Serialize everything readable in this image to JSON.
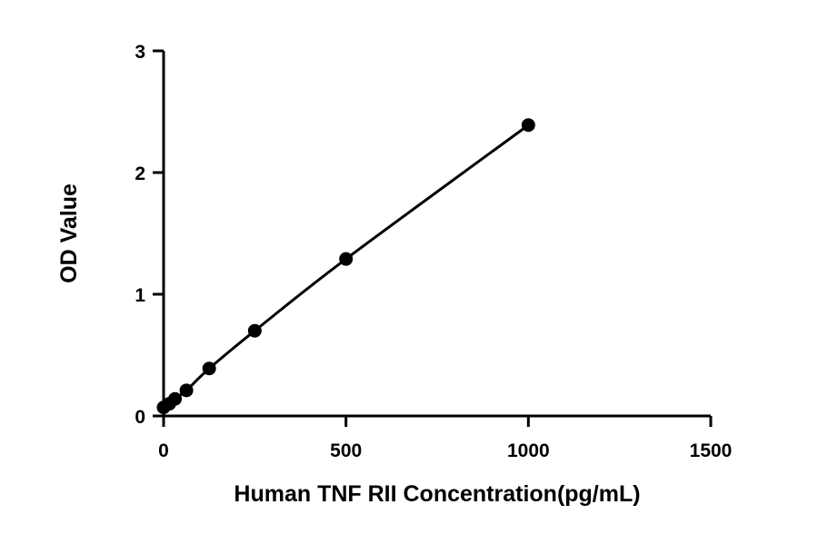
{
  "chart_data": {
    "type": "scatter",
    "title": "",
    "xlabel": "Human TNF RII Concentration(pg/mL)",
    "ylabel": "OD Value",
    "xlim": [
      0,
      1500
    ],
    "ylim": [
      0,
      3
    ],
    "xticks": [
      0,
      500,
      1000,
      1500
    ],
    "yticks": [
      0,
      1,
      2,
      3
    ],
    "xtick_labels": [
      "0",
      "500",
      "1000",
      "1500"
    ],
    "ytick_labels": [
      "0",
      "1",
      "2",
      "3"
    ],
    "grid": false,
    "fit_curve": true,
    "series": [
      {
        "x": [
          0,
          15.6,
          31.25,
          62.5,
          125,
          250,
          500,
          1000
        ],
        "y": [
          0.07,
          0.1,
          0.14,
          0.21,
          0.39,
          0.7,
          1.29,
          2.39
        ]
      }
    ],
    "colors": {
      "marker": "#000000",
      "line": "#000000",
      "axis": "#000000"
    }
  }
}
